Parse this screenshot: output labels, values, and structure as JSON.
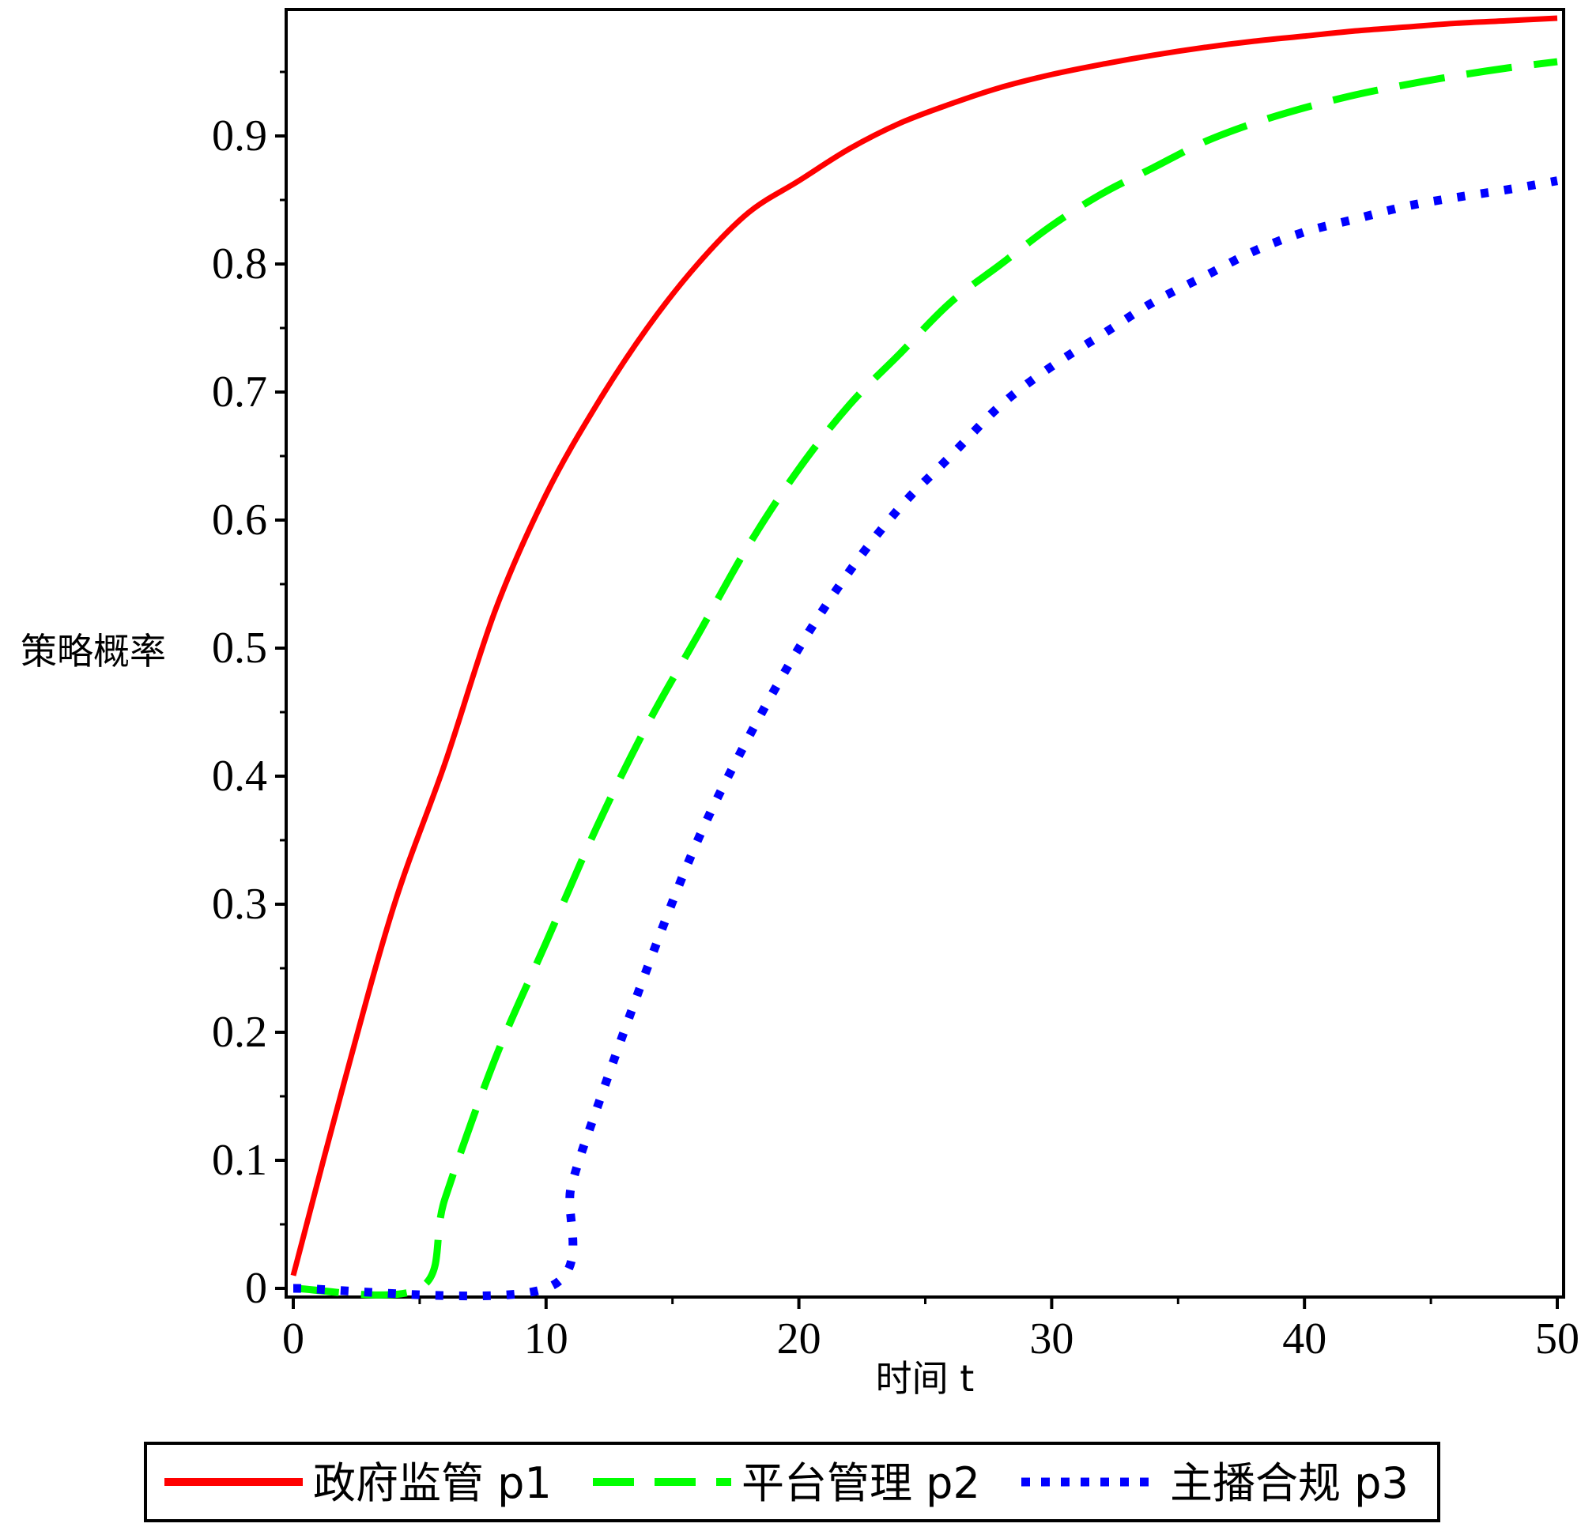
{
  "chart_data": {
    "type": "line",
    "title": "",
    "xlabel": "时间 t",
    "ylabel": "策略概率",
    "xlim": [
      0,
      50
    ],
    "ylim": [
      0,
      1
    ],
    "x_ticks": [
      0,
      10,
      20,
      30,
      40,
      50
    ],
    "y_ticks": [
      0,
      0.1,
      0.2,
      0.3,
      0.4,
      0.5,
      0.6,
      0.7,
      0.8,
      0.9
    ],
    "grid": false,
    "legend_position": "bottom",
    "series": [
      {
        "name": "政府监管 p1",
        "color": "#ff0000",
        "style": "solid",
        "x": [
          0,
          2,
          4,
          6,
          8,
          10,
          12,
          14,
          16,
          18,
          20,
          22,
          24,
          26,
          28,
          30,
          32,
          34,
          36,
          38,
          40,
          42,
          44,
          46,
          48,
          50
        ],
        "y": [
          0.01,
          0.16,
          0.3,
          0.41,
          0.53,
          0.62,
          0.69,
          0.75,
          0.8,
          0.84,
          0.865,
          0.89,
          0.91,
          0.925,
          0.938,
          0.948,
          0.956,
          0.963,
          0.969,
          0.974,
          0.978,
          0.982,
          0.985,
          0.988,
          0.99,
          0.992
        ]
      },
      {
        "name": "平台管理 p2",
        "color": "#00ff00",
        "style": "dashed",
        "x": [
          0,
          5,
          6,
          8,
          10,
          12,
          14,
          16,
          18,
          20,
          22,
          24,
          26,
          28,
          30,
          32,
          34,
          36,
          38,
          40,
          42,
          44,
          46,
          48,
          50
        ],
        "y": [
          0,
          0,
          0.07,
          0.18,
          0.27,
          0.36,
          0.44,
          0.51,
          0.58,
          0.64,
          0.69,
          0.73,
          0.77,
          0.8,
          0.83,
          0.855,
          0.875,
          0.895,
          0.91,
          0.922,
          0.932,
          0.94,
          0.947,
          0.953,
          0.958
        ]
      },
      {
        "name": "主播合规 p3",
        "color": "#0000ff",
        "style": "dotted",
        "x": [
          0,
          10,
          11,
          12,
          14,
          16,
          18,
          20,
          22,
          24,
          26,
          28,
          30,
          32,
          34,
          36,
          38,
          40,
          42,
          44,
          46,
          48,
          50
        ],
        "y": [
          0,
          0,
          0.08,
          0.14,
          0.25,
          0.35,
          0.43,
          0.5,
          0.56,
          0.61,
          0.65,
          0.69,
          0.72,
          0.745,
          0.77,
          0.79,
          0.81,
          0.825,
          0.835,
          0.845,
          0.852,
          0.858,
          0.865
        ]
      }
    ]
  }
}
